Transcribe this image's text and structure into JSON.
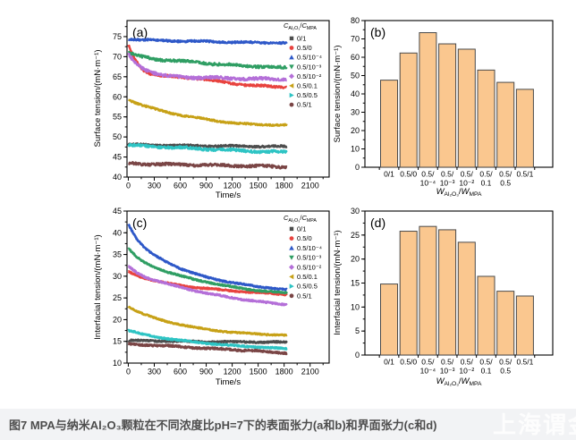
{
  "caption": "图7 MPA与纳米Al₂O₃颗粒在不同浓度比pH=7下的表面张力(a和b)和界面张力(c和d)",
  "watermark": "上海谓金",
  "colors": {
    "bar_fill": "#fac78f",
    "bar_edge": "#4a4a4a",
    "axis": "#000000",
    "caption_bg": "#f2f3f5",
    "caption_text": "#4d4d4d"
  },
  "legend": {
    "title_parts": [
      {
        "t": "C",
        "it": 1
      },
      {
        "t": "Al₂O₃",
        "sub": 1
      },
      {
        "t": "/"
      },
      {
        "t": "C",
        "it": 1
      },
      {
        "t": "MPA",
        "sub": 1
      }
    ],
    "entries": [
      {
        "label": "0/1",
        "marker": "square",
        "color": "#4d4d4d"
      },
      {
        "label": "0.5/0",
        "marker": "circle",
        "color": "#e8433f"
      },
      {
        "label": "0.5/10⁻⁴",
        "marker": "triangle-up",
        "color": "#2e58c8"
      },
      {
        "label": "0.5/10⁻³",
        "marker": "triangle-down",
        "color": "#2f9e63"
      },
      {
        "label": "0.5/10⁻²",
        "marker": "diamond",
        "color": "#b46fd8"
      },
      {
        "label": "0.5/0.1",
        "marker": "triangle-left",
        "color": "#c7a117"
      },
      {
        "label": "0.5/0.5",
        "marker": "triangle-right",
        "color": "#2ec4c4"
      },
      {
        "label": "0.5/1",
        "marker": "circle",
        "color": "#7a4545"
      }
    ]
  },
  "chart_data": [
    {
      "id": "a",
      "type": "line",
      "letter": "(a)",
      "xlabel": "Time/s",
      "ylabel": "Surface tension/(mN·m⁻¹)",
      "xlim": [
        -15,
        2320
      ],
      "xticks": [
        0,
        300,
        600,
        900,
        1200,
        1500,
        1800,
        2100
      ],
      "xminor": 150,
      "ylim": [
        40,
        79
      ],
      "yticks": [
        40,
        45,
        50,
        55,
        60,
        65,
        70,
        75
      ],
      "yminor": 2.5,
      "series": [
        {
          "name": "0/1",
          "color": "#4d4d4d",
          "noise": 0.22,
          "points": [
            [
              0,
              48.1
            ],
            [
              400,
              47.9
            ],
            [
              800,
              47.8
            ],
            [
              1200,
              47.7
            ],
            [
              1830,
              47.6
            ]
          ]
        },
        {
          "name": "0.5/0",
          "color": "#e8433f",
          "noise": 0.25,
          "points": [
            [
              0,
              73
            ],
            [
              60,
              70
            ],
            [
              150,
              67
            ],
            [
              250,
              65.8
            ],
            [
              400,
              65.2
            ],
            [
              600,
              64.9
            ],
            [
              800,
              64.6
            ],
            [
              1000,
              64.0
            ],
            [
              1200,
              63.3
            ],
            [
              1400,
              62.9
            ],
            [
              1600,
              62.6
            ],
            [
              1830,
              62.4
            ]
          ]
        },
        {
          "name": "0.5/10⁻⁴",
          "color": "#2e58c8",
          "noise": 0.22,
          "points": [
            [
              0,
              74.4
            ],
            [
              300,
              74.1
            ],
            [
              600,
              73.9
            ],
            [
              900,
              73.8
            ],
            [
              1200,
              73.6
            ],
            [
              1500,
              73.5
            ],
            [
              1830,
              73.4
            ]
          ]
        },
        {
          "name": "0.5/10⁻³",
          "color": "#2f9e63",
          "noise": 0.3,
          "points": [
            [
              0,
              71
            ],
            [
              150,
              70
            ],
            [
              300,
              69.4
            ],
            [
              600,
              68.9
            ],
            [
              900,
              68.4
            ],
            [
              1200,
              67.9
            ],
            [
              1500,
              67.6
            ],
            [
              1830,
              67.2
            ]
          ]
        },
        {
          "name": "0.5/10⁻²",
          "color": "#b46fd8",
          "noise": 0.33,
          "points": [
            [
              0,
              70.5
            ],
            [
              100,
              68
            ],
            [
              250,
              66.3
            ],
            [
              400,
              65.3
            ],
            [
              600,
              64.9
            ],
            [
              900,
              64.8
            ],
            [
              1100,
              64.6
            ],
            [
              1400,
              64.5
            ],
            [
              1830,
              64.4
            ]
          ]
        },
        {
          "name": "0.5/0.1",
          "color": "#c7a117",
          "noise": 0.2,
          "points": [
            [
              0,
              59.3
            ],
            [
              150,
              58
            ],
            [
              300,
              57
            ],
            [
              500,
              55.9
            ],
            [
              700,
              55.1
            ],
            [
              900,
              54.4
            ],
            [
              1100,
              53.8
            ],
            [
              1300,
              53.3
            ],
            [
              1500,
              53.1
            ],
            [
              1830,
              53
            ]
          ]
        },
        {
          "name": "0.5/0.5",
          "color": "#2ec4c4",
          "noise": 0.3,
          "points": [
            [
              0,
              47.9
            ],
            [
              300,
              47.6
            ],
            [
              600,
              47.3
            ],
            [
              900,
              47.0
            ],
            [
              1200,
              46.7
            ],
            [
              1500,
              46.4
            ],
            [
              1830,
              46.2
            ]
          ]
        },
        {
          "name": "0.5/1",
          "color": "#7a4545",
          "noise": 0.3,
          "points": [
            [
              0,
              43.4
            ],
            [
              300,
              43.2
            ],
            [
              600,
              43.1
            ],
            [
              900,
              43.0
            ],
            [
              1200,
              42.9
            ],
            [
              1500,
              42.7
            ],
            [
              1830,
              42.5
            ]
          ]
        }
      ],
      "legend": true
    },
    {
      "id": "b",
      "type": "bar",
      "letter": "(b)",
      "ylabel": "Surface tension/(mN·m⁻¹)",
      "xlabel_parts": [
        {
          "t": "W",
          "it": 1
        },
        {
          "t": "Al₂O₃",
          "sub": 1
        },
        {
          "t": "/"
        },
        {
          "t": "W",
          "it": 1
        },
        {
          "t": "MPA",
          "sub": 1
        }
      ],
      "ylim": [
        0,
        80
      ],
      "yticks": [
        0,
        10,
        20,
        30,
        40,
        50,
        60,
        70,
        80
      ],
      "yminor": 5,
      "cat_line1": [
        "0/1",
        "0.5/0",
        "0.5/",
        "0.5/",
        "0.5/",
        "0.5/",
        "0.5/",
        "0.5/1"
      ],
      "cat_line2": [
        "",
        "",
        "10⁻⁴",
        "10⁻³",
        "10⁻²",
        "0.1",
        "0.5",
        ""
      ],
      "values": [
        47.5,
        62.3,
        73.4,
        67.3,
        64.4,
        53.0,
        46.3,
        42.5
      ]
    },
    {
      "id": "c",
      "type": "line",
      "letter": "(c)",
      "xlabel": "Time/s",
      "ylabel": "Interfacial tension/(mN·m⁻¹)",
      "xlim": [
        -15,
        2320
      ],
      "xticks": [
        0,
        300,
        600,
        900,
        1200,
        1500,
        1800,
        2100
      ],
      "xminor": 150,
      "ylim": [
        10,
        45
      ],
      "yticks": [
        10,
        15,
        20,
        25,
        30,
        35,
        40,
        45
      ],
      "yminor": 2.5,
      "series": [
        {
          "name": "0/1",
          "color": "#4d4d4d",
          "noise": 0.16,
          "points": [
            [
              0,
              15.2
            ],
            [
              300,
              15.1
            ],
            [
              600,
              15.0
            ],
            [
              900,
              14.9
            ],
            [
              1200,
              14.9
            ],
            [
              1830,
              14.8
            ]
          ]
        },
        {
          "name": "0.5/0",
          "color": "#e8433f",
          "noise": 0.14,
          "points": [
            [
              0,
              31
            ],
            [
              150,
              29.8
            ],
            [
              300,
              29
            ],
            [
              500,
              28.2
            ],
            [
              700,
              27.6
            ],
            [
              900,
              27.2
            ],
            [
              1100,
              26.8
            ],
            [
              1300,
              26.5
            ],
            [
              1500,
              26.2
            ],
            [
              1830,
              25.8
            ]
          ]
        },
        {
          "name": "0.5/10⁻⁴",
          "color": "#2e58c8",
          "noise": 0.14,
          "points": [
            [
              0,
              42
            ],
            [
              100,
              38.5
            ],
            [
              200,
              36.3
            ],
            [
              300,
              34.8
            ],
            [
              450,
              33.2
            ],
            [
              600,
              31.8
            ],
            [
              750,
              30.7
            ],
            [
              900,
              29.8
            ],
            [
              1100,
              28.9
            ],
            [
              1300,
              28.2
            ],
            [
              1500,
              27.6
            ],
            [
              1830,
              26.9
            ]
          ]
        },
        {
          "name": "0.5/10⁻³",
          "color": "#2f9e63",
          "noise": 0.14,
          "points": [
            [
              0,
              36.4
            ],
            [
              100,
              34.3
            ],
            [
              200,
              33
            ],
            [
              300,
              32.1
            ],
            [
              450,
              31
            ],
            [
              600,
              30.1
            ],
            [
              750,
              29.3
            ],
            [
              900,
              28.7
            ],
            [
              1100,
              27.9
            ],
            [
              1300,
              27.2
            ],
            [
              1500,
              26.7
            ],
            [
              1830,
              26.1
            ]
          ]
        },
        {
          "name": "0.5/10⁻²",
          "color": "#b46fd8",
          "noise": 0.15,
          "points": [
            [
              0,
              32.3
            ],
            [
              100,
              30.8
            ],
            [
              200,
              29.8
            ],
            [
              300,
              29.1
            ],
            [
              500,
              28
            ],
            [
              700,
              27
            ],
            [
              900,
              26.1
            ],
            [
              1100,
              25.4
            ],
            [
              1300,
              24.7
            ],
            [
              1500,
              24.2
            ],
            [
              1650,
              23.8
            ],
            [
              1830,
              23.5
            ]
          ]
        },
        {
          "name": "0.5/0.1",
          "color": "#c7a117",
          "noise": 0.13,
          "points": [
            [
              0,
              23
            ],
            [
              150,
              21.5
            ],
            [
              300,
              20.4
            ],
            [
              450,
              19.5
            ],
            [
              600,
              18.9
            ],
            [
              800,
              18.1
            ],
            [
              1000,
              17.5
            ],
            [
              1200,
              17.1
            ],
            [
              1400,
              16.8
            ],
            [
              1600,
              16.6
            ],
            [
              1830,
              16.4
            ]
          ]
        },
        {
          "name": "0.5/0.5",
          "color": "#2ec4c4",
          "noise": 0.15,
          "points": [
            [
              0,
              17.5
            ],
            [
              150,
              16.7
            ],
            [
              300,
              16.1
            ],
            [
              500,
              15.5
            ],
            [
              700,
              15.0
            ],
            [
              900,
              14.6
            ],
            [
              1100,
              14.2
            ],
            [
              1300,
              13.9
            ],
            [
              1500,
              13.7
            ],
            [
              1830,
              13.3
            ]
          ]
        },
        {
          "name": "0.5/1",
          "color": "#7a4545",
          "noise": 0.18,
          "points": [
            [
              0,
              14.4
            ],
            [
              200,
              14.2
            ],
            [
              400,
              14.0
            ],
            [
              600,
              13.8
            ],
            [
              800,
              13.5
            ],
            [
              1000,
              13.3
            ],
            [
              1200,
              13.1
            ],
            [
              1400,
              12.9
            ],
            [
              1600,
              12.6
            ],
            [
              1830,
              12.3
            ]
          ]
        }
      ],
      "legend": true
    },
    {
      "id": "d",
      "type": "bar",
      "letter": "(d)",
      "ylabel": "Interfacial tension/(mN·m⁻¹)",
      "xlabel_parts": [
        {
          "t": "W",
          "it": 1
        },
        {
          "t": "Al₂O₃",
          "sub": 1
        },
        {
          "t": "/"
        },
        {
          "t": "W",
          "it": 1
        },
        {
          "t": "MPA",
          "sub": 1
        }
      ],
      "ylim": [
        0,
        30
      ],
      "yticks": [
        0,
        5,
        10,
        15,
        20,
        25,
        30
      ],
      "yminor": 2.5,
      "cat_line1": [
        "0/1",
        "0.5/0",
        "0.5/",
        "0.5/",
        "0.5/",
        "0.5/",
        "0.5/",
        "0.5/1"
      ],
      "cat_line2": [
        "",
        "",
        "10⁻⁴",
        "10⁻³",
        "10⁻²",
        "0.1",
        "0.5",
        ""
      ],
      "values": [
        14.8,
        25.8,
        26.8,
        26.1,
        23.5,
        16.4,
        13.3,
        12.3
      ]
    }
  ]
}
